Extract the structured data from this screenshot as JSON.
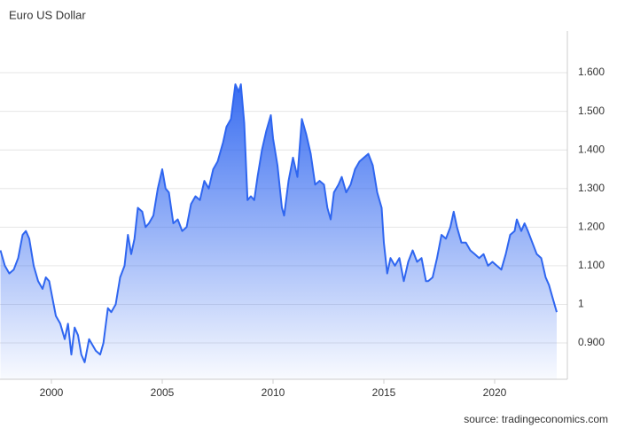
{
  "chart_data": {
    "type": "area",
    "title": "Euro US Dollar",
    "source": "source: tradingeconomics.com",
    "color": "#2f66f0",
    "grid": true,
    "xlim": [
      1997.68,
      2023.28
    ],
    "ylim": [
      0.806,
      1.708
    ],
    "xticks": [
      2000,
      2005,
      2010,
      2015,
      2020
    ],
    "yticks": [
      {
        "value": 0.9,
        "label": "0.900"
      },
      1,
      {
        "value": 1.1,
        "label": "1.100"
      },
      {
        "value": 1.2,
        "label": "1.200"
      },
      {
        "value": 1.3,
        "label": "1.300"
      },
      {
        "value": 1.4,
        "label": "1.400"
      },
      {
        "value": 1.5,
        "label": "1.500"
      },
      {
        "value": 1.6,
        "label": "1.600"
      }
    ],
    "x": [
      1997.7,
      1997.9,
      1998.1,
      1998.3,
      1998.5,
      1998.7,
      1998.85,
      1999.0,
      1999.2,
      1999.4,
      1999.6,
      1999.75,
      1999.9,
      2000.0,
      2000.2,
      2000.4,
      2000.6,
      2000.75,
      2000.9,
      2001.05,
      2001.2,
      2001.35,
      2001.5,
      2001.7,
      2001.9,
      2002.0,
      2002.2,
      2002.35,
      2002.55,
      2002.7,
      2002.9,
      2003.1,
      2003.3,
      2003.45,
      2003.6,
      2003.75,
      2003.9,
      2004.1,
      2004.25,
      2004.4,
      2004.6,
      2004.8,
      2005.0,
      2005.15,
      2005.3,
      2005.5,
      2005.7,
      2005.9,
      2006.1,
      2006.3,
      2006.5,
      2006.7,
      2006.9,
      2007.1,
      2007.3,
      2007.5,
      2007.75,
      2007.9,
      2008.1,
      2008.3,
      2008.45,
      2008.55,
      2008.7,
      2008.85,
      2009.0,
      2009.15,
      2009.3,
      2009.5,
      2009.7,
      2009.9,
      2010.0,
      2010.2,
      2010.4,
      2010.5,
      2010.7,
      2010.9,
      2011.1,
      2011.3,
      2011.5,
      2011.7,
      2011.9,
      2012.1,
      2012.3,
      2012.45,
      2012.6,
      2012.75,
      2012.95,
      2013.1,
      2013.3,
      2013.5,
      2013.7,
      2013.9,
      2014.1,
      2014.3,
      2014.5,
      2014.7,
      2014.9,
      2015.0,
      2015.15,
      2015.3,
      2015.5,
      2015.7,
      2015.9,
      2016.1,
      2016.3,
      2016.5,
      2016.7,
      2016.9,
      2017.0,
      2017.2,
      2017.4,
      2017.6,
      2017.8,
      2018.0,
      2018.15,
      2018.3,
      2018.5,
      2018.7,
      2018.9,
      2019.1,
      2019.3,
      2019.5,
      2019.7,
      2019.9,
      2020.1,
      2020.3,
      2020.5,
      2020.7,
      2020.9,
      2021.0,
      2021.2,
      2021.35,
      2021.5,
      2021.7,
      2021.9,
      2022.1,
      2022.3,
      2022.45,
      2022.6,
      2022.8
    ],
    "values": [
      1.14,
      1.1,
      1.08,
      1.09,
      1.12,
      1.18,
      1.19,
      1.17,
      1.1,
      1.06,
      1.04,
      1.07,
      1.06,
      1.03,
      0.97,
      0.95,
      0.91,
      0.95,
      0.87,
      0.94,
      0.92,
      0.87,
      0.85,
      0.91,
      0.89,
      0.88,
      0.87,
      0.9,
      0.99,
      0.98,
      1.0,
      1.07,
      1.1,
      1.18,
      1.13,
      1.17,
      1.25,
      1.24,
      1.2,
      1.21,
      1.23,
      1.3,
      1.35,
      1.3,
      1.29,
      1.21,
      1.22,
      1.19,
      1.2,
      1.26,
      1.28,
      1.27,
      1.32,
      1.3,
      1.35,
      1.37,
      1.42,
      1.46,
      1.48,
      1.57,
      1.55,
      1.57,
      1.47,
      1.27,
      1.28,
      1.27,
      1.33,
      1.4,
      1.45,
      1.49,
      1.43,
      1.36,
      1.25,
      1.23,
      1.32,
      1.38,
      1.33,
      1.48,
      1.44,
      1.39,
      1.31,
      1.32,
      1.31,
      1.25,
      1.22,
      1.29,
      1.31,
      1.33,
      1.29,
      1.31,
      1.35,
      1.37,
      1.38,
      1.39,
      1.36,
      1.29,
      1.25,
      1.16,
      1.08,
      1.12,
      1.1,
      1.12,
      1.06,
      1.11,
      1.14,
      1.11,
      1.12,
      1.06,
      1.06,
      1.07,
      1.12,
      1.18,
      1.17,
      1.2,
      1.24,
      1.2,
      1.16,
      1.16,
      1.14,
      1.13,
      1.12,
      1.13,
      1.1,
      1.11,
      1.1,
      1.09,
      1.13,
      1.18,
      1.19,
      1.22,
      1.19,
      1.21,
      1.19,
      1.16,
      1.13,
      1.12,
      1.07,
      1.05,
      1.02,
      0.98
    ]
  }
}
